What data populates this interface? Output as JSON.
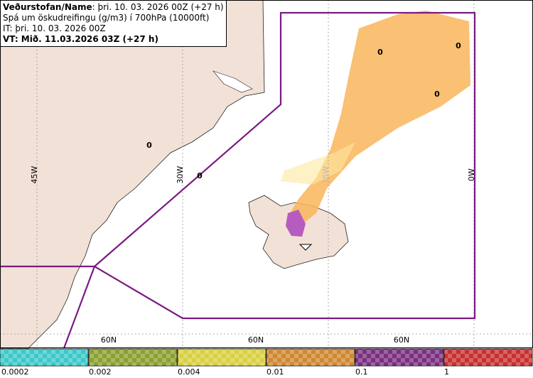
{
  "header": {
    "lines": [
      {
        "bold": "Veðurstofan/Name",
        "text": ": þri. 10. 03. 2026 00Z (+27 h)"
      },
      {
        "text": "Spá um öskudreifingu (g/m3) í 700hPa (10000ft)"
      },
      {
        "text": "IT: þri. 10. 03. 2026 00Z"
      },
      {
        "bold": "VT: Mið. 11.03.2026 03Z (+27 h)"
      }
    ]
  },
  "map": {
    "meridian_labels": [
      "45W",
      "30W",
      "15W",
      "0W"
    ],
    "parallel_labels": [
      "60N",
      "60N",
      "60N"
    ],
    "point_labels": [
      "0",
      "0",
      "0",
      "0",
      "0"
    ]
  },
  "legend": {
    "ticks": [
      "0.0002",
      "0.002",
      "0.004",
      "0.01",
      "0.1",
      "1"
    ]
  }
}
